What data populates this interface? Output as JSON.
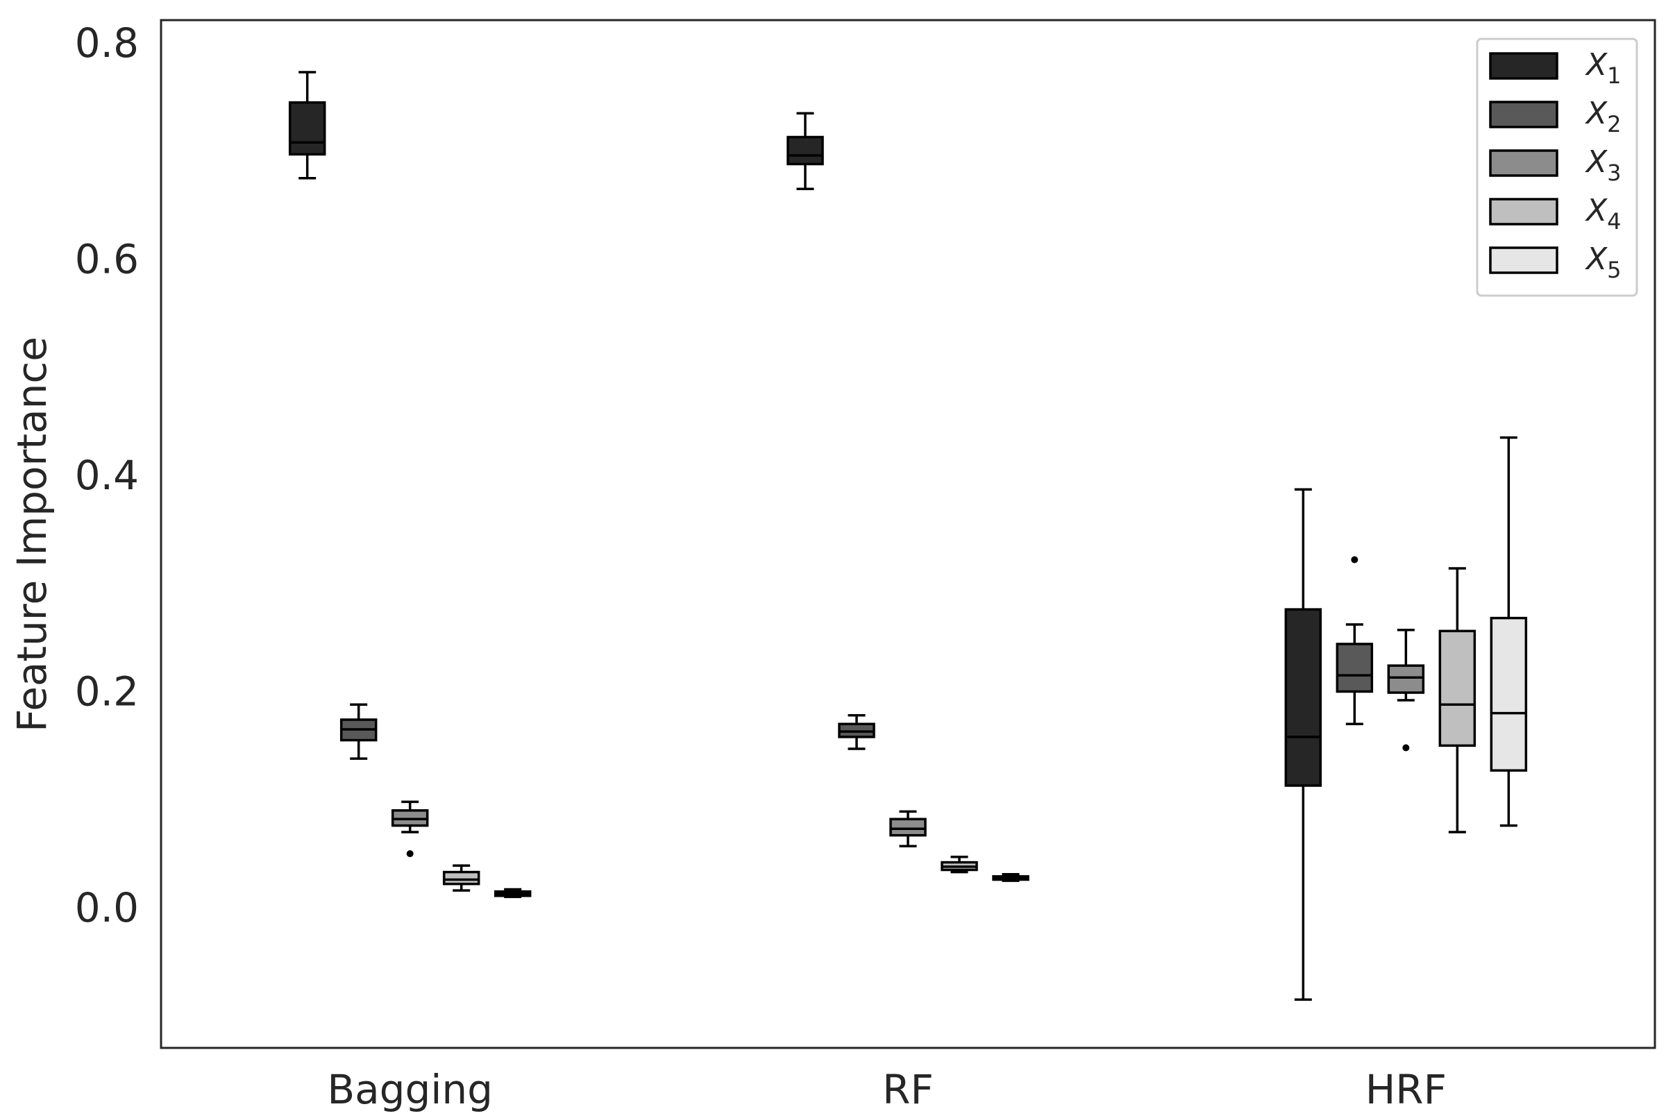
{
  "chart_data": {
    "type": "boxplot",
    "title": "",
    "xlabel": "",
    "ylabel": "Feature Importance",
    "ylim": [
      -0.125,
      0.82
    ],
    "yticks": [
      0.0,
      0.2,
      0.4,
      0.6,
      0.8
    ],
    "ytick_labels": [
      "0.0",
      "0.2",
      "0.4",
      "0.6",
      "0.8"
    ],
    "categories": [
      "Bagging",
      "RF",
      "HRF"
    ],
    "legend": {
      "location": "top-right",
      "entries": [
        {
          "name": "X",
          "sub": "1",
          "color": "#262626"
        },
        {
          "name": "X",
          "sub": "2",
          "color": "#595959"
        },
        {
          "name": "X",
          "sub": "3",
          "color": "#8c8c8c"
        },
        {
          "name": "X",
          "sub": "4",
          "color": "#bfbfbf"
        },
        {
          "name": "X",
          "sub": "5",
          "color": "#e6e6e6"
        }
      ]
    },
    "groups": [
      {
        "category": "Bagging",
        "boxes": [
          {
            "feature": "X1",
            "whislo": 0.675,
            "q1": 0.697,
            "med": 0.708,
            "q3": 0.745,
            "whishi": 0.773,
            "fliers": []
          },
          {
            "feature": "X2",
            "whislo": 0.138,
            "q1": 0.155,
            "med": 0.165,
            "q3": 0.174,
            "whishi": 0.188,
            "fliers": []
          },
          {
            "feature": "X3",
            "whislo": 0.07,
            "q1": 0.076,
            "med": 0.082,
            "q3": 0.09,
            "whishi": 0.098,
            "fliers": [
              0.05
            ]
          },
          {
            "feature": "X4",
            "whislo": 0.016,
            "q1": 0.022,
            "med": 0.026,
            "q3": 0.033,
            "whishi": 0.039,
            "fliers": []
          },
          {
            "feature": "X5",
            "whislo": 0.01,
            "q1": 0.011,
            "med": 0.013,
            "q3": 0.015,
            "whishi": 0.017,
            "fliers": []
          }
        ]
      },
      {
        "category": "RF",
        "boxes": [
          {
            "feature": "X1",
            "whislo": 0.665,
            "q1": 0.688,
            "med": 0.696,
            "q3": 0.713,
            "whishi": 0.735,
            "fliers": []
          },
          {
            "feature": "X2",
            "whislo": 0.147,
            "q1": 0.158,
            "med": 0.163,
            "q3": 0.17,
            "whishi": 0.178,
            "fliers": []
          },
          {
            "feature": "X3",
            "whislo": 0.057,
            "q1": 0.067,
            "med": 0.073,
            "q3": 0.082,
            "whishi": 0.089,
            "fliers": []
          },
          {
            "feature": "X4",
            "whislo": 0.033,
            "q1": 0.035,
            "med": 0.038,
            "q3": 0.042,
            "whishi": 0.047,
            "fliers": []
          },
          {
            "feature": "X5",
            "whislo": 0.025,
            "q1": 0.026,
            "med": 0.027,
            "q3": 0.029,
            "whishi": 0.031,
            "fliers": []
          }
        ]
      },
      {
        "category": "HRF",
        "boxes": [
          {
            "feature": "X1",
            "whislo": -0.085,
            "q1": 0.113,
            "med": 0.158,
            "q3": 0.276,
            "whishi": 0.387,
            "fliers": []
          },
          {
            "feature": "X2",
            "whislo": 0.17,
            "q1": 0.2,
            "med": 0.215,
            "q3": 0.244,
            "whishi": 0.262,
            "fliers": [
              0.322
            ]
          },
          {
            "feature": "X3",
            "whislo": 0.192,
            "q1": 0.199,
            "med": 0.213,
            "q3": 0.224,
            "whishi": 0.257,
            "fliers": [
              0.148
            ]
          },
          {
            "feature": "X4",
            "whislo": 0.07,
            "q1": 0.15,
            "med": 0.188,
            "q3": 0.256,
            "whishi": 0.314,
            "fliers": []
          },
          {
            "feature": "X5",
            "whislo": 0.076,
            "q1": 0.127,
            "med": 0.18,
            "q3": 0.268,
            "whishi": 0.435,
            "fliers": []
          }
        ]
      }
    ]
  }
}
